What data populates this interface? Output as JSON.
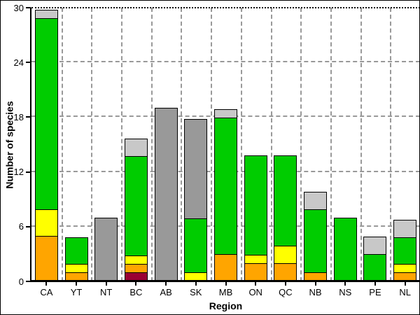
{
  "chart_data": {
    "type": "bar",
    "stacked": true,
    "title": "",
    "xlabel": "Region",
    "ylabel": "Number of species",
    "ylim": [
      0,
      30
    ],
    "yticks": [
      0,
      6,
      12,
      18,
      24,
      30
    ],
    "categories": [
      "CA",
      "YT",
      "NT",
      "BC",
      "AB",
      "SK",
      "MB",
      "ON",
      "QC",
      "NB",
      "NS",
      "PE",
      "NL"
    ],
    "series": [
      {
        "name": "dark-red",
        "color": "#990033",
        "values": [
          0,
          0,
          0,
          1,
          0,
          0,
          0,
          0,
          0,
          0,
          0,
          0,
          0
        ]
      },
      {
        "name": "orange",
        "color": "#FFA500",
        "values": [
          5,
          1,
          0,
          1,
          0,
          0,
          3,
          2,
          2,
          1,
          0,
          0,
          1
        ]
      },
      {
        "name": "yellow",
        "color": "#FFFF00",
        "values": [
          3,
          1,
          0,
          1,
          0,
          1,
          0,
          1,
          2,
          0,
          0,
          0,
          1
        ]
      },
      {
        "name": "green",
        "color": "#00CC00",
        "values": [
          21,
          3,
          0,
          11,
          0,
          6,
          15,
          11,
          10,
          7,
          7,
          3,
          3
        ]
      },
      {
        "name": "light-gray",
        "color": "#C8C8C8",
        "values": [
          1,
          0,
          0,
          2,
          0,
          0,
          1,
          0,
          0,
          2,
          0,
          2,
          2
        ]
      },
      {
        "name": "medium-gray",
        "color": "#999999",
        "values": [
          0,
          0,
          7,
          0,
          19,
          11,
          0,
          0,
          0,
          0,
          0,
          0,
          0
        ]
      }
    ],
    "totals": [
      30,
      5,
      7,
      16,
      19,
      18,
      19,
      14,
      14,
      10,
      7,
      5,
      7
    ],
    "grid": {
      "horizontal": true,
      "vertical": true,
      "style": "dashed",
      "color": "#999999"
    },
    "plot_top_border": {
      "style": "dotted",
      "color": "#000000"
    },
    "axis_color": "#000000",
    "background": "#FFFFFF",
    "legend": "none"
  }
}
